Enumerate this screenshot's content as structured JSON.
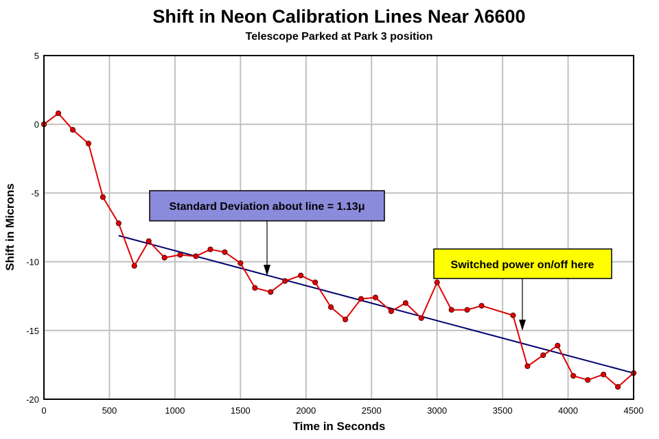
{
  "chart_data": {
    "type": "line",
    "title": "Shift in Neon Calibration Lines Near λ6600",
    "subtitle": "Telescope Parked at Park 3 position",
    "xlabel": "Time in Seconds",
    "ylabel": "Shift in Microns",
    "xlim": [
      0,
      4500
    ],
    "ylim": [
      -20,
      5
    ],
    "xticks": [
      0,
      500,
      1000,
      1500,
      2000,
      2500,
      3000,
      3500,
      4000,
      4500
    ],
    "yticks": [
      5,
      0,
      -5,
      -10,
      -15,
      -20
    ],
    "grid": true,
    "series": [
      {
        "kind": "data",
        "color": "#e00000",
        "marker_color": "#e00000",
        "x": [
          0,
          110,
          220,
          340,
          450,
          570,
          690,
          800,
          920,
          1040,
          1160,
          1270,
          1380,
          1500,
          1610,
          1730,
          1840,
          1960,
          2070,
          2190,
          2300,
          2420,
          2530,
          2650,
          2760,
          2880,
          3000,
          3110,
          3230,
          3340,
          3580,
          3690,
          3810,
          3920,
          4040,
          4150,
          4270,
          4380,
          4500
        ],
        "y": [
          0,
          0.8,
          -0.4,
          -1.4,
          -5.3,
          -7.2,
          -10.3,
          -8.5,
          -9.7,
          -9.5,
          -9.6,
          -9.1,
          -9.3,
          -10.1,
          -11.9,
          -12.2,
          -11.4,
          -11.0,
          -11.5,
          -13.3,
          -14.2,
          -12.7,
          -12.6,
          -13.6,
          -13.0,
          -14.1,
          -11.5,
          -13.5,
          -13.5,
          -13.2,
          -13.9,
          -17.6,
          -16.8,
          -16.1,
          -18.3,
          -18.6,
          -18.2,
          -19.1,
          -18.1
        ]
      },
      {
        "kind": "fit",
        "color": "#00006e",
        "x": [
          570,
          4500
        ],
        "y": [
          -8.1,
          -18.1
        ]
      }
    ],
    "annotations": [
      {
        "text": "Standard Deviation about line = 1.13μ",
        "fill": "#8b8bdb",
        "arrow_to": [
          1720,
          -11.1
        ]
      },
      {
        "text": "Switched power on/off here",
        "fill": "#ffff00",
        "arrow_to": [
          3660,
          -15.1
        ]
      }
    ]
  }
}
